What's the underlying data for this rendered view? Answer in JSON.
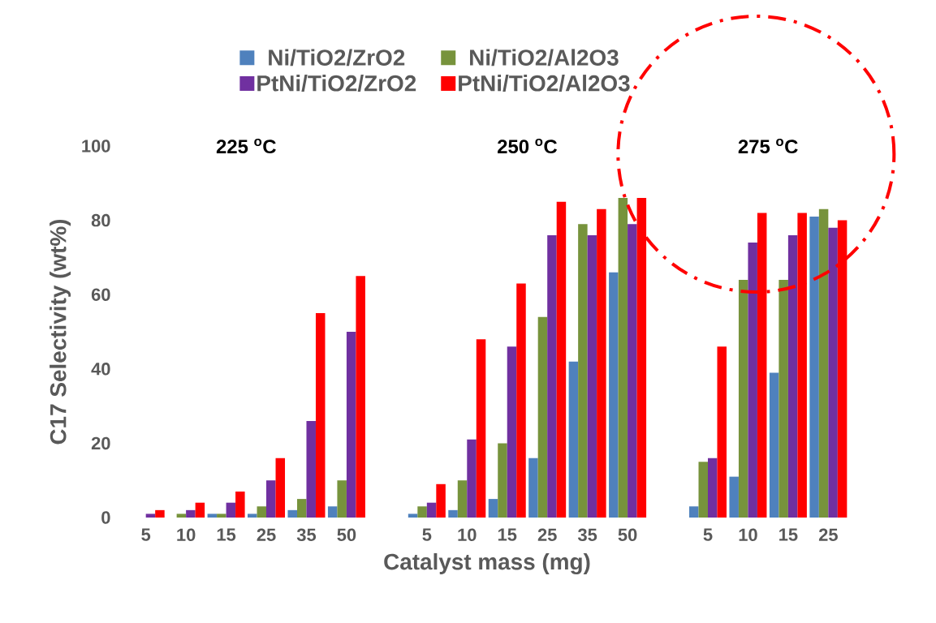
{
  "chart_data": {
    "type": "bar",
    "xlabel": "Catalyst mass (mg)",
    "ylabel": "C17 Selectivity (wt%)",
    "categories": [
      "5",
      "10",
      "15",
      "25",
      "35",
      "50",
      null,
      "5",
      "10",
      "15",
      "25",
      "35",
      "50",
      null,
      "5",
      "10",
      "15",
      "25"
    ],
    "series": [
      {
        "name": "Ni/TiO2/ZrO2",
        "color": "#4f81bd",
        "values": [
          0,
          0,
          1,
          1,
          2,
          3,
          null,
          1,
          2,
          5,
          16,
          42,
          66,
          null,
          3,
          11,
          39,
          81
        ]
      },
      {
        "name": "Ni/TiO2/Al2O3",
        "color": "#77933c",
        "values": [
          0,
          1,
          1,
          3,
          5,
          10,
          null,
          3,
          10,
          20,
          54,
          79,
          86,
          null,
          15,
          64,
          64,
          83
        ]
      },
      {
        "name": "PtNi/TiO2/ZrO2",
        "color": "#7030a0",
        "values": [
          1,
          2,
          4,
          10,
          26,
          50,
          null,
          4,
          21,
          46,
          76,
          76,
          79,
          null,
          16,
          74,
          76,
          78
        ]
      },
      {
        "name": "PtNi/TiO2/Al2O3",
        "color": "#ff0000",
        "values": [
          2,
          4,
          7,
          16,
          55,
          65,
          null,
          9,
          48,
          63,
          85,
          83,
          86,
          null,
          46,
          82,
          82,
          80
        ]
      }
    ],
    "annotations": [
      "225 $^{o}$C",
      "250 $^{o}$C",
      "275 $^{o}$C"
    ],
    "ylim": [
      0,
      100
    ],
    "yticks": [
      0,
      20,
      40,
      60,
      80,
      100
    ],
    "grid": false,
    "legend": "top"
  }
}
